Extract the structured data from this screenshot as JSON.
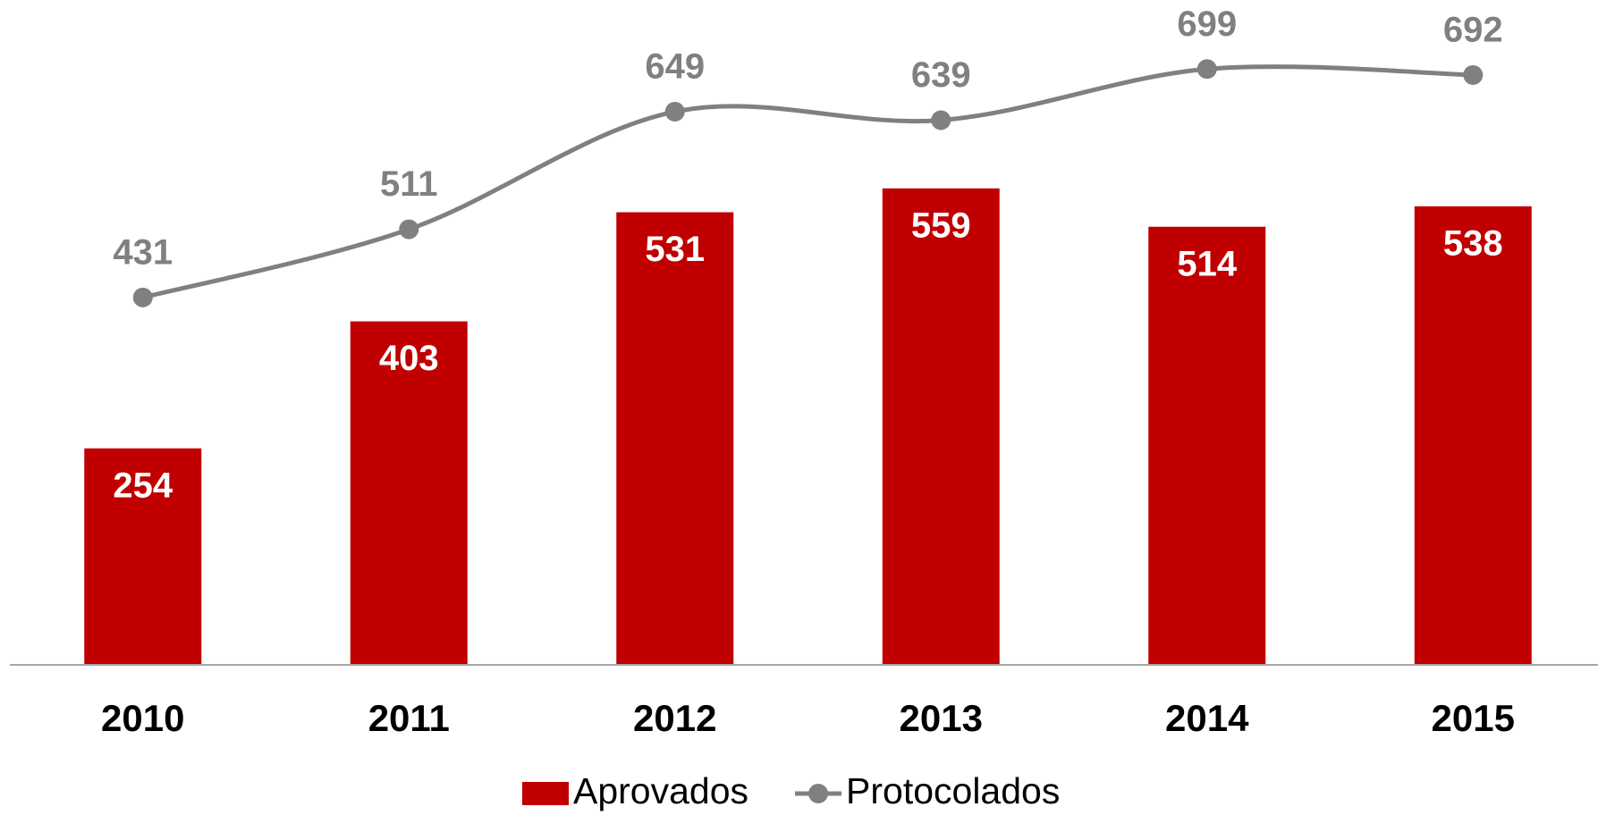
{
  "chart_data": {
    "type": "bar",
    "categories": [
      "2010",
      "2011",
      "2012",
      "2013",
      "2014",
      "2015"
    ],
    "series": [
      {
        "name": "Aprovados",
        "type": "bar",
        "color": "#c00000",
        "values": [
          254,
          403,
          531,
          559,
          514,
          538
        ]
      },
      {
        "name": "Protocolados",
        "type": "line",
        "color": "#808080",
        "values": [
          431,
          511,
          649,
          639,
          699,
          692
        ]
      }
    ],
    "ylim": [
      0,
      780
    ]
  }
}
